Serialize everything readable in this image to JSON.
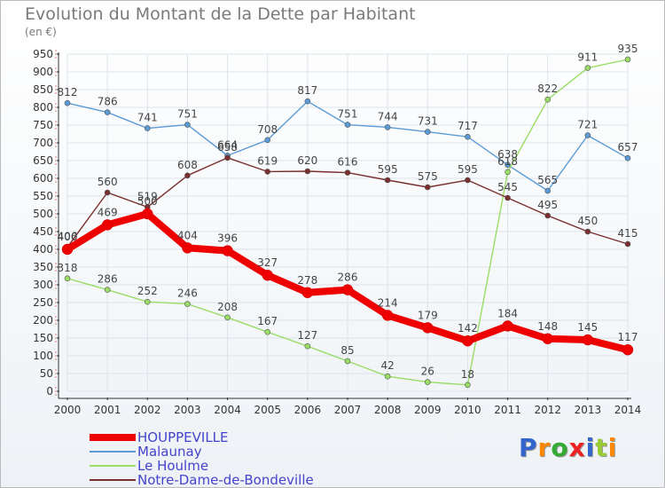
{
  "chart_data": {
    "type": "line",
    "title": "Evolution du Montant de la Dette par Habitant",
    "subtitle": "(en €)",
    "categories": [
      "2000",
      "2001",
      "2002",
      "2003",
      "2004",
      "2005",
      "2006",
      "2007",
      "2008",
      "2009",
      "2010",
      "2011",
      "2012",
      "2013",
      "2014"
    ],
    "ylim": [
      0,
      950
    ],
    "yticks": [
      0,
      50,
      100,
      150,
      200,
      250,
      300,
      350,
      400,
      450,
      500,
      550,
      600,
      650,
      700,
      750,
      800,
      850,
      900,
      950
    ],
    "grid": true,
    "legend_position": "bottom-left",
    "series": [
      {
        "name": "Malaunay",
        "color": "#5b9bd5",
        "style": "thin",
        "values": [
          812,
          786,
          741,
          751,
          664,
          708,
          817,
          751,
          744,
          731,
          717,
          638,
          565,
          721,
          657
        ]
      },
      {
        "name": "Le Houlme",
        "color": "#99dd66",
        "style": "thin",
        "values": [
          318,
          286,
          252,
          246,
          208,
          167,
          127,
          85,
          42,
          26,
          18,
          618,
          822,
          911,
          935
        ]
      },
      {
        "name": "Notre-Dame-de-Bondeville",
        "color": "#7a2f2f",
        "style": "thin",
        "values": [
          406,
          560,
          519,
          608,
          658,
          619,
          620,
          616,
          595,
          575,
          595,
          545,
          495,
          450,
          415
        ]
      },
      {
        "name": "HOUPPEVILLE",
        "color": "#ee0000",
        "style": "thick",
        "values": [
          400,
          469,
          500,
          404,
          396,
          327,
          278,
          286,
          214,
          179,
          142,
          184,
          148,
          145,
          117
        ]
      }
    ],
    "legend_order": [
      "HOUPPEVILLE",
      "Malaunay",
      "Le Houlme",
      "Notre-Dame-de-Bondeville"
    ]
  },
  "logo": {
    "letters": [
      "P",
      "r",
      "o",
      "x",
      "i",
      "t",
      "i"
    ],
    "colors": [
      "#3366cc",
      "#ff8800",
      "#33aa33",
      "#ee2222",
      "#3366cc",
      "#99cc33",
      "#ff8800"
    ]
  }
}
